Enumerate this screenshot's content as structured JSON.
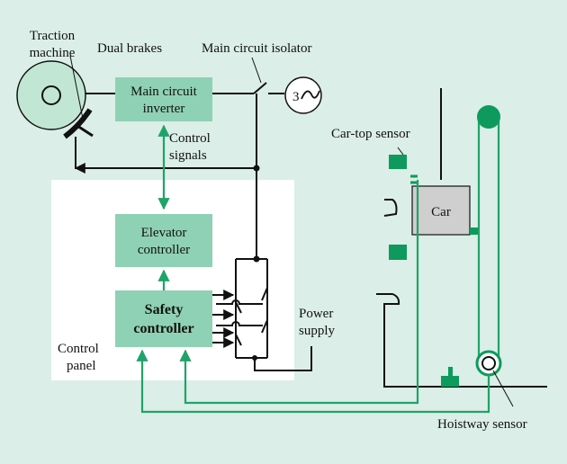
{
  "labels": {
    "traction_machine_1": "Traction",
    "traction_machine_2": "machine",
    "dual_brakes": "Dual brakes",
    "main_circuit_isolator": "Main circuit isolator",
    "control_signals_1": "Control",
    "control_signals_2": "signals",
    "car_top_sensor": "Car-top sensor",
    "power_supply_1": "Power",
    "power_supply_2": "supply",
    "control_panel_1": "Control",
    "control_panel_2": "panel",
    "hoistway_sensor": "Hoistway sensor",
    "three_phase": "3"
  },
  "boxes": {
    "inverter_1": "Main circuit",
    "inverter_2": "inverter",
    "elevator_controller_1": "Elevator",
    "elevator_controller_2": "controller",
    "safety_controller_1": "Safety",
    "safety_controller_2": "controller",
    "car": "Car"
  },
  "colors": {
    "background": "#dbeee7",
    "green_box": "#8fd1b4",
    "green_line": "#1fa36a",
    "sensor": "#0d9a5c",
    "car_box": "#cfcfcf",
    "panel": "#ffffff"
  }
}
